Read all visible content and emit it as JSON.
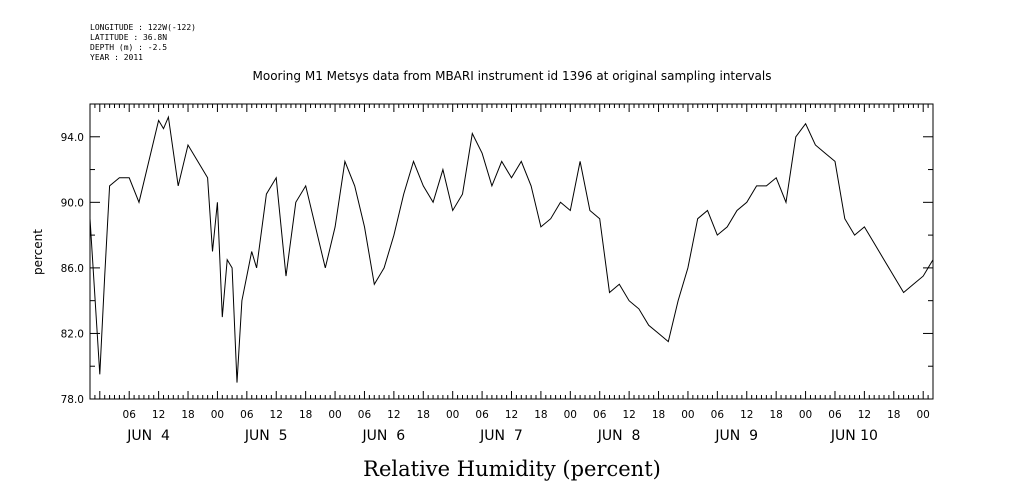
{
  "header": {
    "meta_lines": [
      "LONGITUDE : 122W(-122)",
      "LATITUDE : 36.8N",
      "DEPTH (m) : -2.5",
      "YEAR : 2011"
    ],
    "title": "Mooring M1 Metsys data from MBARI instrument id 1396 at original sampling intervals"
  },
  "chart_data": {
    "type": "line",
    "title": "Mooring M1 Metsys data from MBARI instrument id 1396 at original sampling intervals",
    "xlabel": "Relative Humidity (percent)",
    "ylabel": "percent",
    "xlim": [
      "2011-06-03T22:00",
      "2011-06-11T02:00"
    ],
    "ylim": [
      78.0,
      96.0
    ],
    "yticks": [
      "78.0",
      "82.0",
      "86.0",
      "90.0",
      "94.0"
    ],
    "hour_ticks": [
      "06",
      "12",
      "18",
      "00",
      "06",
      "12",
      "18",
      "00",
      "06",
      "12",
      "18",
      "00",
      "06",
      "12",
      "18",
      "00",
      "06",
      "12",
      "18",
      "00",
      "06",
      "12",
      "18",
      "00",
      "06",
      "12",
      "18",
      "00"
    ],
    "day_labels": [
      "JUN  4",
      "JUN  5",
      "JUN  6",
      "JUN  7",
      "JUN  8",
      "JUN  9",
      "JUN 10"
    ],
    "grid": false,
    "series": [
      {
        "x": [
          "2011-06-03T22:00",
          "2011-06-04T00:00",
          "2011-06-04T01:00",
          "2011-06-04T02:00",
          "2011-06-04T04:00",
          "2011-06-04T06:00",
          "2011-06-04T08:00",
          "2011-06-04T10:00",
          "2011-06-04T12:00",
          "2011-06-04T13:00",
          "2011-06-04T14:00",
          "2011-06-04T16:00",
          "2011-06-04T18:00",
          "2011-06-04T20:00",
          "2011-06-04T22:00",
          "2011-06-04T23:00",
          "2011-06-05T00:00",
          "2011-06-05T01:00",
          "2011-06-05T02:00",
          "2011-06-05T03:00",
          "2011-06-05T04:00",
          "2011-06-05T05:00",
          "2011-06-05T06:00",
          "2011-06-05T07:00",
          "2011-06-05T08:00",
          "2011-06-05T10:00",
          "2011-06-05T12:00",
          "2011-06-05T14:00",
          "2011-06-05T16:00",
          "2011-06-05T18:00",
          "2011-06-05T20:00",
          "2011-06-05T22:00",
          "2011-06-06T00:00",
          "2011-06-06T02:00",
          "2011-06-06T04:00",
          "2011-06-06T06:00",
          "2011-06-06T08:00",
          "2011-06-06T10:00",
          "2011-06-06T12:00",
          "2011-06-06T14:00",
          "2011-06-06T16:00",
          "2011-06-06T18:00",
          "2011-06-06T20:00",
          "2011-06-06T22:00",
          "2011-06-07T00:00",
          "2011-06-07T02:00",
          "2011-06-07T04:00",
          "2011-06-07T06:00",
          "2011-06-07T08:00",
          "2011-06-07T10:00",
          "2011-06-07T12:00",
          "2011-06-07T14:00",
          "2011-06-07T16:00",
          "2011-06-07T18:00",
          "2011-06-07T20:00",
          "2011-06-07T22:00",
          "2011-06-08T00:00",
          "2011-06-08T02:00",
          "2011-06-08T04:00",
          "2011-06-08T06:00",
          "2011-06-08T08:00",
          "2011-06-08T10:00",
          "2011-06-08T12:00",
          "2011-06-08T14:00",
          "2011-06-08T16:00",
          "2011-06-08T18:00",
          "2011-06-08T20:00",
          "2011-06-08T22:00",
          "2011-06-09T00:00",
          "2011-06-09T01:00",
          "2011-06-09T02:00",
          "2011-06-09T04:00",
          "2011-06-09T06:00",
          "2011-06-09T08:00",
          "2011-06-09T10:00",
          "2011-06-09T12:00",
          "2011-06-09T14:00",
          "2011-06-09T16:00",
          "2011-06-09T18:00",
          "2011-06-09T20:00",
          "2011-06-09T22:00",
          "2011-06-10T00:00",
          "2011-06-10T02:00",
          "2011-06-10T04:00",
          "2011-06-10T06:00",
          "2011-06-10T08:00",
          "2011-06-10T10:00",
          "2011-06-10T12:00",
          "2011-06-10T14:00",
          "2011-06-10T16:00",
          "2011-06-10T18:00",
          "2011-06-10T20:00",
          "2011-06-10T22:00",
          "2011-06-11T00:00",
          "2011-06-11T01:00",
          "2011-06-11T02:00"
        ],
        "values": [
          89.0,
          79.5,
          85.5,
          91.0,
          91.5,
          91.5,
          90.0,
          92.5,
          95.0,
          94.5,
          95.2,
          91.0,
          93.5,
          92.5,
          91.5,
          87.0,
          90.0,
          83.0,
          86.5,
          86.0,
          79.0,
          84.0,
          85.5,
          87.0,
          86.0,
          90.5,
          91.5,
          85.5,
          90.0,
          91.0,
          88.5,
          86.0,
          88.5,
          92.5,
          91.0,
          88.5,
          85.0,
          86.0,
          88.0,
          90.5,
          92.5,
          91.0,
          90.0,
          92.0,
          89.5,
          90.5,
          94.2,
          93.0,
          91.0,
          92.5,
          91.5,
          92.5,
          91.0,
          88.5,
          89.0,
          90.0,
          89.5,
          92.5,
          89.5,
          89.0,
          84.5,
          85.0,
          84.0,
          83.5,
          82.5,
          82.0,
          81.5,
          84.0,
          86.0,
          87.5,
          89.0,
          89.5,
          88.0,
          88.5,
          89.5,
          90.0,
          91.0,
          91.0,
          91.5,
          90.0,
          94.0,
          94.8,
          93.5,
          93.0,
          92.5,
          89.0,
          88.0,
          88.5,
          87.5,
          86.5,
          85.5,
          84.5,
          85.0,
          85.5,
          86.0,
          86.5
        ]
      }
    ]
  }
}
